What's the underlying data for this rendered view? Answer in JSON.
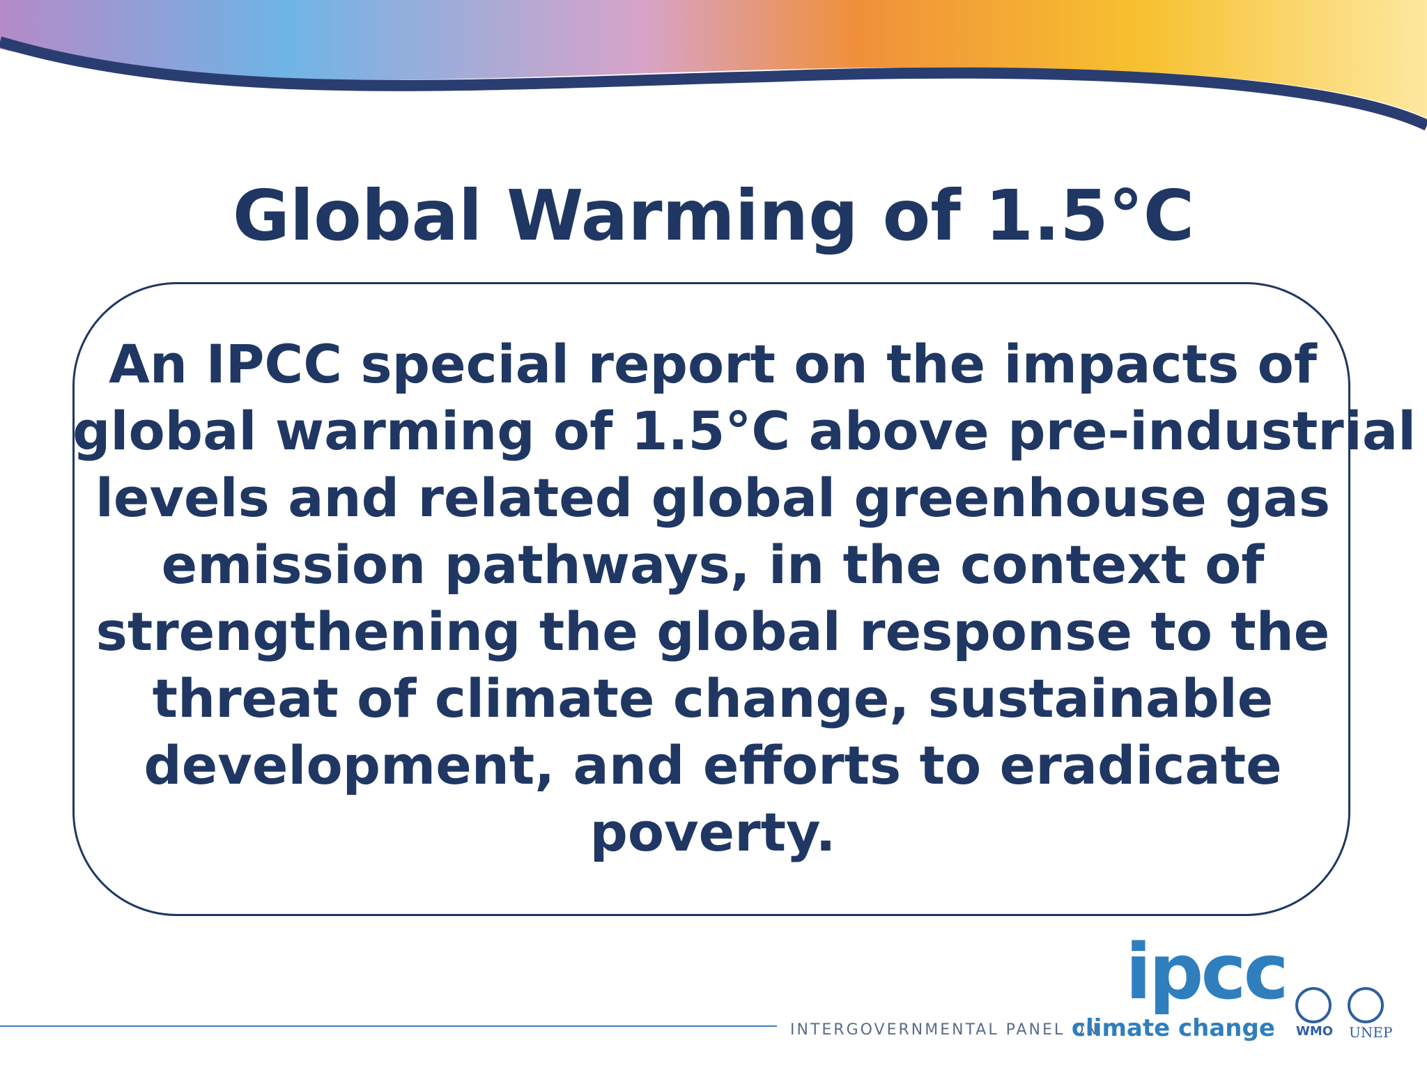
{
  "title": "Global Warming of 1.5°C",
  "body": {
    "lines": [
      "An IPCC special report on the impacts of",
      "global warming of 1.5°C above pre-industrial",
      "levels and related global greenhouse gas",
      "emission pathways, in the context of",
      "strengthening the global response to the",
      "threat of climate change, sustainable",
      "development, and efforts to eradicate",
      "poverty."
    ]
  },
  "footer": {
    "logo": "ipcc",
    "panel": "INTERGOVERNMENTAL PANEL ON",
    "climate": "climate change",
    "wmo": "WMO",
    "unep": "UNEP"
  }
}
